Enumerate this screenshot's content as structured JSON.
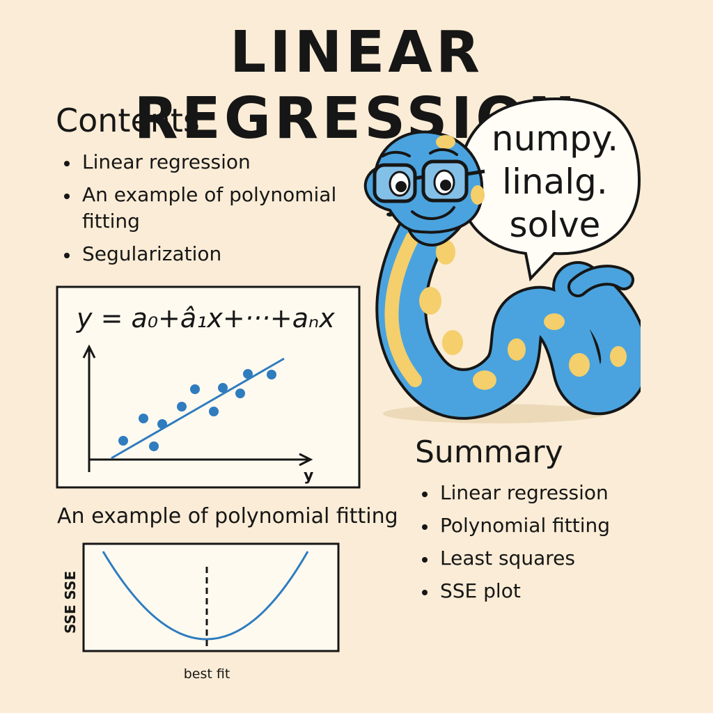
{
  "title": "LINEAR REGRESSION",
  "contents": {
    "heading": "Contents",
    "items": [
      "Linear regression",
      "An example of polynomial fitting",
      "Segularization"
    ]
  },
  "regression_panel": {
    "formula": "y = a₀+â₁x+···+aₙx",
    "x_axis_label": "y"
  },
  "polynomial": {
    "heading": "An example of polynomial fitting",
    "y_axis_label": "SSE  SSE",
    "marker_label": "best fit"
  },
  "speech_bubble": {
    "lines": [
      "numpy.",
      "linalg.",
      "solve"
    ]
  },
  "summary": {
    "heading": "Summary",
    "items": [
      "Linear regression",
      "Polynomial fitting",
      "Least squares",
      "SSE plot"
    ]
  },
  "colors": {
    "background": "#faecd6",
    "plot_blue": "#2f7cbf",
    "snake_blue": "#4aa3de",
    "snake_yellow": "#f5cf6b",
    "ink": "#161616"
  }
}
